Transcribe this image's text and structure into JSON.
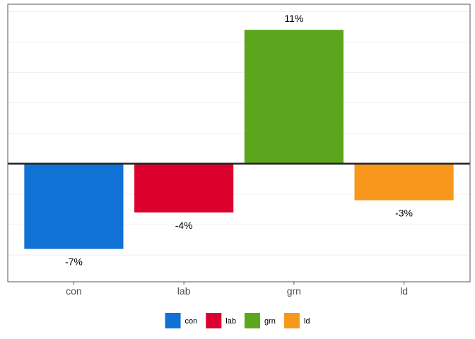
{
  "chart_data": {
    "type": "bar",
    "categories": [
      "con",
      "lab",
      "grn",
      "ld"
    ],
    "values": [
      -7,
      -4,
      11,
      -3
    ],
    "value_labels": [
      "-7%",
      "-4%",
      "11%",
      "-3%"
    ],
    "colors": [
      "#1172d6",
      "#dc002e",
      "#5ca61e",
      "#f7981c"
    ],
    "ylim": [
      -9.7,
      13.1
    ],
    "gridlines": [
      -7.5,
      -5,
      -2.5,
      0,
      2.5,
      5,
      7.5,
      10,
      12.5
    ],
    "zero_line": true,
    "grid": true,
    "y_tick_labels_shown": false,
    "legend": {
      "position": "bottom",
      "entries": [
        "con",
        "lab",
        "grn",
        "ld"
      ]
    },
    "title": "",
    "xlabel": "",
    "ylabel": ""
  }
}
